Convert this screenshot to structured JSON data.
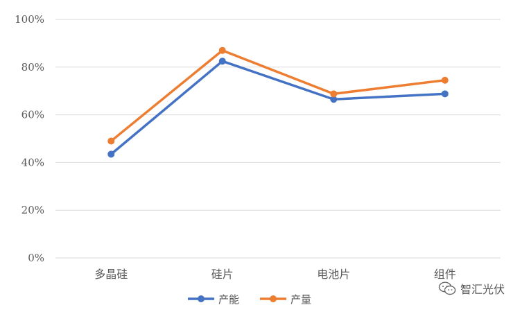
{
  "chart_data": {
    "type": "line",
    "categories": [
      "多晶硅",
      "硅片",
      "电池片",
      "组件"
    ],
    "series": [
      {
        "name": "产能",
        "values": [
          43.5,
          82.5,
          66.5,
          68.8
        ],
        "color": "#4472C4"
      },
      {
        "name": "产量",
        "values": [
          49.0,
          87.0,
          68.8,
          74.5
        ],
        "color": "#ED7D31"
      }
    ],
    "ylim": [
      0,
      100
    ],
    "yticks": [
      0,
      20,
      40,
      60,
      80,
      100
    ],
    "ytick_labels": [
      "0%",
      "20%",
      "40%",
      "60%",
      "80%",
      "100%"
    ],
    "grid": true,
    "legend_position": "bottom",
    "title": "",
    "xlabel": "",
    "ylabel": ""
  },
  "watermark": {
    "text": "智汇光伏",
    "icon": "wechat-icon"
  }
}
